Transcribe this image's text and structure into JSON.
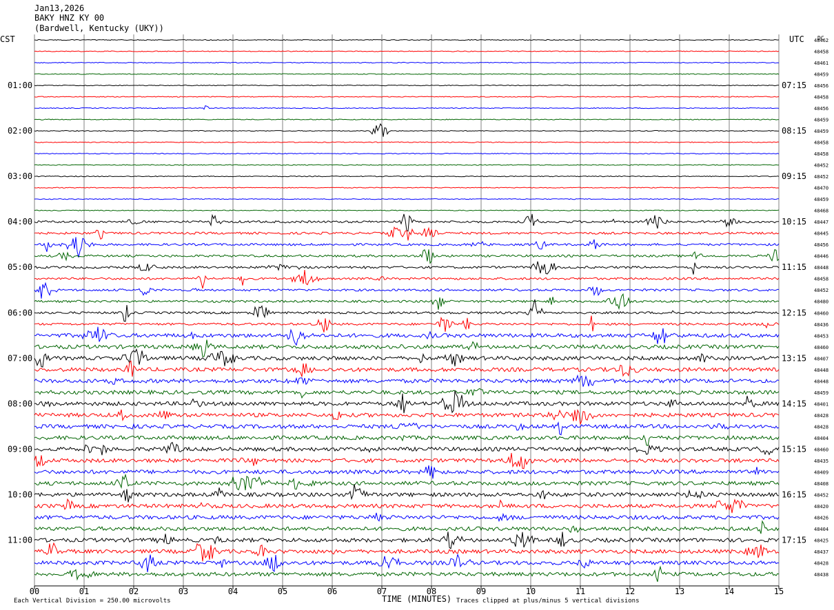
{
  "header": {
    "date": "Jan13,2026",
    "station": "BAKY HNZ KY 00",
    "location": "(Bardwell, Kentucky (UKY))"
  },
  "left_timezone": "CST",
  "right_timezone": "UTC",
  "dc_label": "DC",
  "footer": {
    "scale_note": "Each Vertical Division =  250.00 microvolts",
    "xaxis_title": "TIME (MINUTES)",
    "clip_note": "Traces clipped at plus/minus 5 vertical divisions"
  },
  "colors": {
    "trace_cycle": [
      "#000000",
      "#ff0000",
      "#0000ff",
      "#006400"
    ],
    "grid": "#808080"
  },
  "chart_data": {
    "type": "line",
    "title": "BAKY HNZ KY 00",
    "xlabel": "TIME (MINUTES)",
    "xlim": [
      0,
      15
    ],
    "x_ticks": [
      "00",
      "01",
      "02",
      "03",
      "04",
      "05",
      "06",
      "07",
      "08",
      "09",
      "10",
      "11",
      "12",
      "13",
      "14",
      "15"
    ],
    "row_count": 48,
    "minutes_per_row": 15,
    "left_hour_labels": [
      "01:00",
      "02:00",
      "03:00",
      "04:00",
      "05:00",
      "06:00",
      "07:00",
      "08:00",
      "09:00",
      "10:00",
      "11:00"
    ],
    "right_hour_labels": [
      "07:15",
      "08:15",
      "09:15",
      "10:15",
      "11:15",
      "12:15",
      "13:15",
      "14:15",
      "15:15",
      "16:15",
      "17:15"
    ],
    "dc_offsets": [
      "48462",
      "48458",
      "48461",
      "48459",
      "48456",
      "48458",
      "48456",
      "48459",
      "48459",
      "48458",
      "48458",
      "48452",
      "48452",
      "48470",
      "48459",
      "48468",
      "48447",
      "48445",
      "48456",
      "48446",
      "48448",
      "48458",
      "48452",
      "48480",
      "48460",
      "48436",
      "48453",
      "48460",
      "48407",
      "48448",
      "48448",
      "48459",
      "48401",
      "48428",
      "48428",
      "48404",
      "48460",
      "48435",
      "48409",
      "48408",
      "48452",
      "48420",
      "48426",
      "48404",
      "48425",
      "48437",
      "48428",
      "48438"
    ],
    "clip_divisions": 5,
    "microvolts_per_division": 250.0
  }
}
